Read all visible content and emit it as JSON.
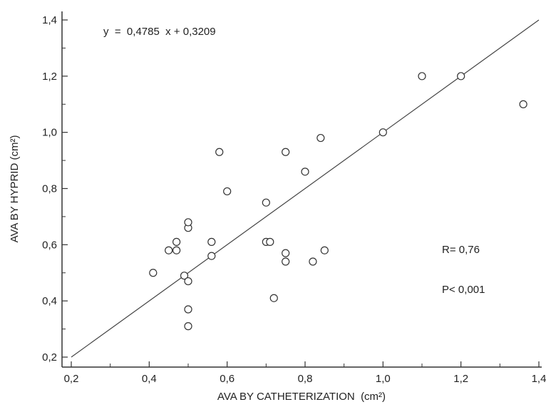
{
  "chart_data": {
    "type": "scatter",
    "xlabel": "AVA BY CATHETERIZATION  (cm²)",
    "ylabel": "AVA BY HYPRID (cm²)",
    "xlim": [
      0.2,
      1.4
    ],
    "ylim": [
      0.2,
      1.4
    ],
    "x_ticks": [
      "0,2",
      "0,4",
      "0,6",
      "0,8",
      "1,0",
      "1,2",
      "1,4"
    ],
    "y_ticks": [
      "0,2",
      "0,4",
      "0,6",
      "0,8",
      "1,0",
      "1,2",
      "1,4"
    ],
    "grid": false,
    "regression": {
      "slope": 0.4785,
      "intercept": 0.3209,
      "line_from": [
        0.2,
        0.2
      ],
      "line_to": [
        1.4,
        1.4
      ]
    },
    "annotations": {
      "equation": "y  =  0,4785  x + 0,3209",
      "r_text": "R= 0,76",
      "p_text": "P< 0,001"
    },
    "points": [
      {
        "x": 0.41,
        "y": 0.5
      },
      {
        "x": 0.45,
        "y": 0.58
      },
      {
        "x": 0.47,
        "y": 0.58
      },
      {
        "x": 0.47,
        "y": 0.61
      },
      {
        "x": 0.49,
        "y": 0.49
      },
      {
        "x": 0.5,
        "y": 0.47
      },
      {
        "x": 0.5,
        "y": 0.37
      },
      {
        "x": 0.5,
        "y": 0.31
      },
      {
        "x": 0.5,
        "y": 0.66
      },
      {
        "x": 0.5,
        "y": 0.68
      },
      {
        "x": 0.56,
        "y": 0.61
      },
      {
        "x": 0.56,
        "y": 0.56
      },
      {
        "x": 0.58,
        "y": 0.93
      },
      {
        "x": 0.6,
        "y": 0.79
      },
      {
        "x": 0.7,
        "y": 0.75
      },
      {
        "x": 0.7,
        "y": 0.61
      },
      {
        "x": 0.71,
        "y": 0.61
      },
      {
        "x": 0.72,
        "y": 0.41
      },
      {
        "x": 0.75,
        "y": 0.93
      },
      {
        "x": 0.75,
        "y": 0.57
      },
      {
        "x": 0.75,
        "y": 0.54
      },
      {
        "x": 0.8,
        "y": 0.86
      },
      {
        "x": 0.82,
        "y": 0.54
      },
      {
        "x": 0.84,
        "y": 0.98
      },
      {
        "x": 0.85,
        "y": 0.58
      },
      {
        "x": 1.0,
        "y": 1.0
      },
      {
        "x": 1.1,
        "y": 1.2
      },
      {
        "x": 1.2,
        "y": 1.2
      },
      {
        "x": 1.36,
        "y": 1.1
      }
    ]
  }
}
